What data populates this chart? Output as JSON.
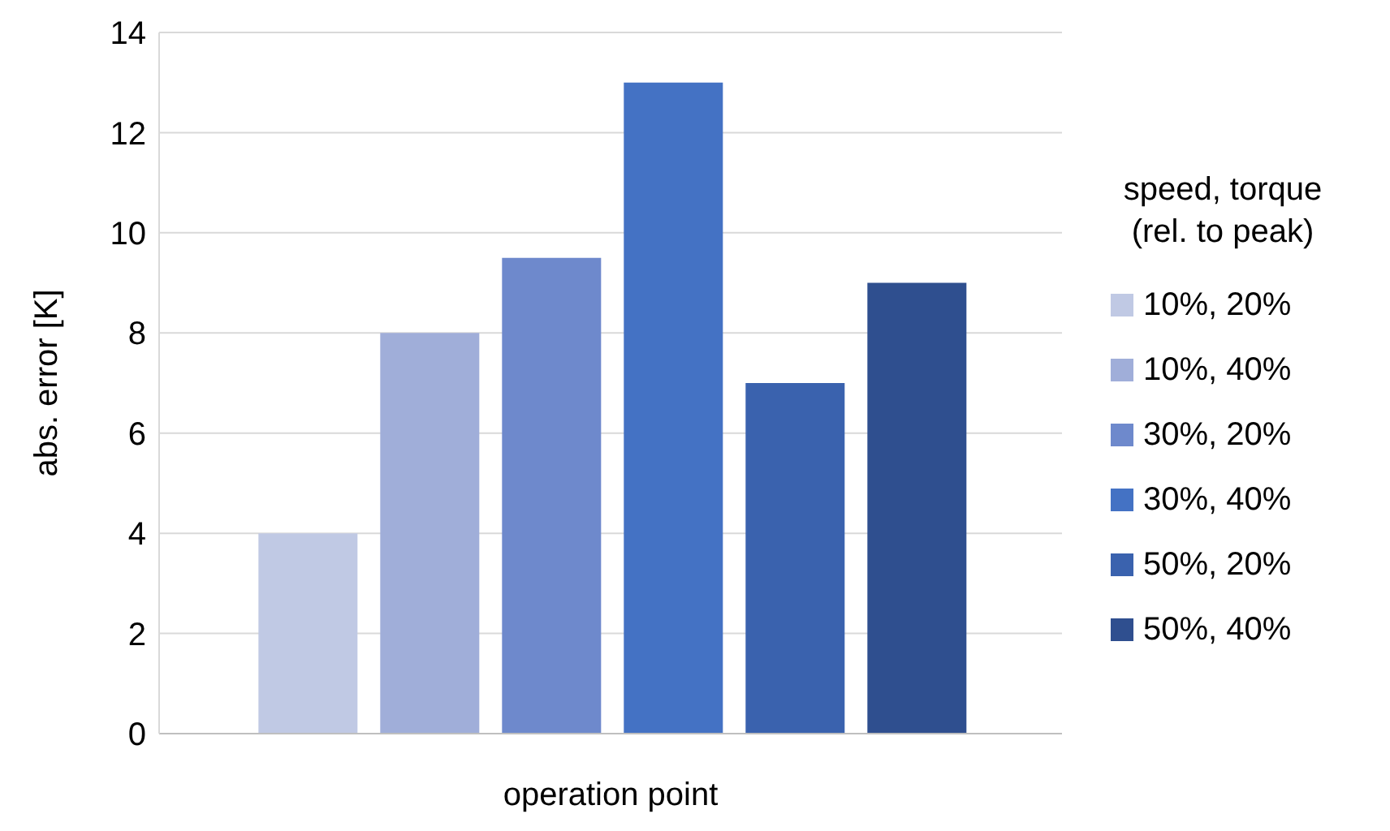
{
  "chart_data": {
    "type": "bar",
    "xlabel": "operation point",
    "ylabel": "abs. error [K]",
    "legend_title": "speed, torque\n(rel. to peak)",
    "categories": [
      null
    ],
    "series": [
      {
        "name": "10%, 20%",
        "color": "#c0c9e4",
        "values": [
          4
        ]
      },
      {
        "name": "10%, 40%",
        "color": "#a0aed9",
        "values": [
          8
        ]
      },
      {
        "name": "30%, 20%",
        "color": "#6e89cc",
        "values": [
          9.5
        ]
      },
      {
        "name": "30%, 40%",
        "color": "#4472c4",
        "values": [
          13
        ]
      },
      {
        "name": "50%, 20%",
        "color": "#3a62ae",
        "values": [
          7
        ]
      },
      {
        "name": "50%, 40%",
        "color": "#2f4f8f",
        "values": [
          9
        ]
      }
    ],
    "ylim": [
      0,
      14
    ],
    "yticks": [
      0,
      2,
      4,
      6,
      8,
      10,
      12,
      14
    ],
    "grid": "y",
    "legend": "right"
  }
}
